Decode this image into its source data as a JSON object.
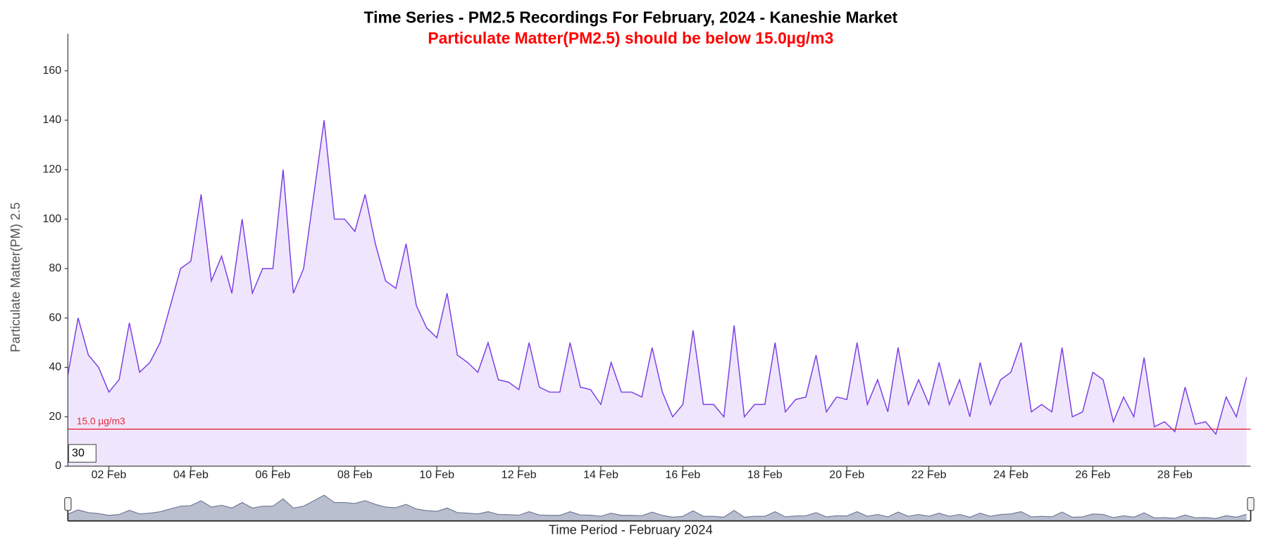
{
  "chart_data": {
    "type": "area",
    "title": "Time Series - PM2.5 Recordings For February, 2024 - Kaneshie Market",
    "subtitle": "Particulate Matter(PM2.5) should be below 15.0µg/m3",
    "y_label": "Particulate Matter(PM) 2.5",
    "x_label": "Time Period - February 2024",
    "zoom_value": "30",
    "threshold": {
      "value": 15,
      "label": "15.0 µg/m3",
      "color": "#e8273a"
    },
    "color": "#7b3fe4",
    "fill": "#efe6fd",
    "xlim": [
      1,
      29.85
    ],
    "ylim": [
      0,
      175
    ],
    "yticks": [
      0,
      20,
      40,
      60,
      80,
      100,
      120,
      140,
      160
    ],
    "xticks": [
      {
        "value": 2,
        "label": "02 Feb"
      },
      {
        "value": 4,
        "label": "04 Feb"
      },
      {
        "value": 6,
        "label": "06 Feb"
      },
      {
        "value": 8,
        "label": "08 Feb"
      },
      {
        "value": 10,
        "label": "10 Feb"
      },
      {
        "value": 12,
        "label": "12 Feb"
      },
      {
        "value": 14,
        "label": "14 Feb"
      },
      {
        "value": 16,
        "label": "16 Feb"
      },
      {
        "value": 18,
        "label": "18 Feb"
      },
      {
        "value": 20,
        "label": "20 Feb"
      },
      {
        "value": 22,
        "label": "22 Feb"
      },
      {
        "value": 24,
        "label": "24 Feb"
      },
      {
        "value": 26,
        "label": "26 Feb"
      },
      {
        "value": 28,
        "label": "28 Feb"
      }
    ],
    "x": [
      1,
      1.25,
      1.5,
      1.75,
      2,
      2.25,
      2.5,
      2.75,
      3,
      3.25,
      3.5,
      3.75,
      4,
      4.25,
      4.5,
      4.75,
      5,
      5.25,
      5.5,
      5.75,
      6,
      6.25,
      6.5,
      6.75,
      7,
      7.25,
      7.5,
      7.75,
      8,
      8.25,
      8.5,
      8.75,
      9,
      9.25,
      9.5,
      9.75,
      10,
      10.25,
      10.5,
      10.75,
      11,
      11.25,
      11.5,
      11.75,
      12,
      12.25,
      12.5,
      12.75,
      13,
      13.25,
      13.5,
      13.75,
      14,
      14.25,
      14.5,
      14.75,
      15,
      15.25,
      15.5,
      15.75,
      16,
      16.25,
      16.5,
      16.75,
      17,
      17.25,
      17.5,
      17.75,
      18,
      18.25,
      18.5,
      18.75,
      19,
      19.25,
      19.5,
      19.75,
      20,
      20.25,
      20.5,
      20.75,
      21,
      21.25,
      21.5,
      21.75,
      22,
      22.25,
      22.5,
      22.75,
      23,
      23.25,
      23.5,
      23.75,
      24,
      24.25,
      24.5,
      24.75,
      25,
      25.25,
      25.5,
      25.75,
      26,
      26.25,
      26.5,
      26.75,
      27,
      27.25,
      27.5,
      27.75,
      28,
      28.25,
      28.5,
      28.75,
      29,
      29.25,
      29.5,
      29.75
    ],
    "values": [
      37,
      60,
      45,
      40,
      30,
      35,
      58,
      38,
      42,
      50,
      65,
      80,
      83,
      110,
      75,
      85,
      70,
      100,
      70,
      80,
      80,
      120,
      70,
      80,
      110,
      140,
      100,
      100,
      95,
      110,
      90,
      75,
      72,
      90,
      65,
      56,
      52,
      70,
      45,
      42,
      38,
      50,
      35,
      34,
      31,
      50,
      32,
      30,
      30,
      50,
      32,
      31,
      25,
      42,
      30,
      30,
      28,
      48,
      30,
      20,
      25,
      55,
      25,
      25,
      20,
      57,
      20,
      25,
      25,
      50,
      22,
      27,
      28,
      45,
      22,
      28,
      27,
      50,
      25,
      35,
      22,
      48,
      25,
      35,
      25,
      42,
      25,
      35,
      20,
      42,
      25,
      35,
      38,
      50,
      22,
      25,
      22,
      48,
      20,
      22,
      38,
      35,
      18,
      28,
      20,
      44,
      16,
      18,
      14,
      32,
      17,
      18,
      13,
      28,
      20,
      36
    ]
  }
}
